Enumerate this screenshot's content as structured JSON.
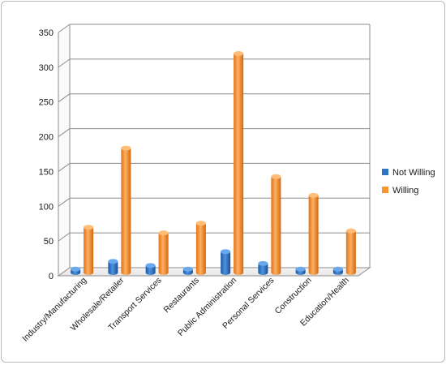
{
  "chart_data": {
    "type": "bar",
    "style": "3d-cylinder",
    "categories": [
      "Industry/Manufacturing",
      "Wholesale/Retailer",
      "Transport Services",
      "Restaurants",
      "Public Administration",
      "Personal Services",
      "Construction",
      "Education/Health"
    ],
    "series": [
      {
        "name": "Not Willing",
        "color": "#2e75c6",
        "values": [
          5,
          16,
          10,
          5,
          30,
          13,
          5,
          5
        ]
      },
      {
        "name": "Willing",
        "color": "#f79330",
        "values": [
          65,
          179,
          57,
          71,
          315,
          138,
          111,
          60
        ]
      }
    ],
    "yticks": [
      "0",
      "50",
      "100",
      "150",
      "200",
      "250",
      "300",
      "350"
    ],
    "ylim": [
      0,
      350
    ],
    "grid": true,
    "legend_position": "right"
  }
}
